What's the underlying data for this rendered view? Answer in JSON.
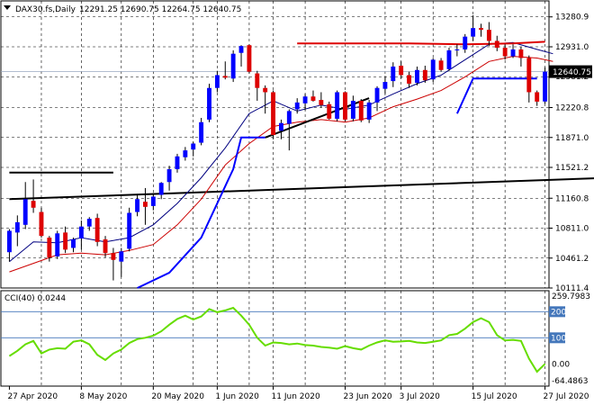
{
  "header": {
    "symbol_label": "DAX30.fs,Daily",
    "ohlc_label": "12291.25 12690.75 12264.75 12640.75"
  },
  "colors": {
    "bull": "#0000ff",
    "bear": "#dd0000",
    "ma_fast": "#000080",
    "ma_slow": "#cc0000",
    "trend": "#000000",
    "cci": "#66dd00",
    "level": "#4477bb",
    "grid": "#000000"
  },
  "chart_data": [
    {
      "type": "candlestick",
      "y_ticks": [
        13280.9,
        12931.0,
        12581.2,
        12220.8,
        11871.0,
        11521.2,
        11160.8,
        10811.0,
        10461.2,
        10111.4
      ],
      "ylim": [
        10111.4,
        13436.0
      ],
      "current_price_label": "12640.75",
      "current_price": 12640.75,
      "x_labels": [
        "27 Apr 2020",
        "8 May 2020",
        "20 May 2020",
        "1 Jun 2020",
        "11 Jun 2020",
        "23 Jun 2020",
        "3 Jul 2020",
        "15 Jul 2020",
        "27 Jul 2020"
      ],
      "x_label_index": [
        0,
        9,
        18,
        26,
        33,
        42,
        49,
        58,
        67
      ],
      "vertical_grid_index": [
        4,
        9,
        14,
        18,
        23,
        26,
        30,
        33,
        37,
        42,
        47,
        49,
        53,
        58,
        62,
        67
      ],
      "candles": [
        [
          10530,
          10800,
          10420,
          10780
        ],
        [
          10760,
          10960,
          10600,
          10880
        ],
        [
          10850,
          11350,
          10800,
          11150
        ],
        [
          11130,
          11380,
          10990,
          11050
        ],
        [
          11000,
          11050,
          10700,
          10720
        ],
        [
          10700,
          10720,
          10420,
          10470
        ],
        [
          10480,
          10780,
          10450,
          10750
        ],
        [
          10760,
          10830,
          10520,
          10560
        ],
        [
          10580,
          10700,
          10530,
          10680
        ],
        [
          10690,
          10900,
          10560,
          10830
        ],
        [
          10830,
          10940,
          10780,
          10920
        ],
        [
          10930,
          10980,
          10600,
          10650
        ],
        [
          10680,
          10720,
          10470,
          10520
        ],
        [
          10520,
          10580,
          10200,
          10440
        ],
        [
          10420,
          10580,
          10240,
          10540
        ],
        [
          10570,
          11050,
          10540,
          10990
        ],
        [
          11000,
          11200,
          10950,
          11150
        ],
        [
          11120,
          11280,
          10850,
          11060
        ],
        [
          11070,
          11220,
          11020,
          11180
        ],
        [
          11200,
          11350,
          11150,
          11340
        ],
        [
          11350,
          11540,
          11250,
          11500
        ],
        [
          11500,
          11680,
          11460,
          11650
        ],
        [
          11640,
          11760,
          11600,
          11720
        ],
        [
          11730,
          11820,
          11650,
          11800
        ],
        [
          11810,
          12100,
          11780,
          12050
        ],
        [
          12080,
          12500,
          12050,
          12450
        ],
        [
          12450,
          12650,
          12400,
          12600
        ],
        [
          12590,
          12760,
          12550,
          12570
        ],
        [
          12560,
          12890,
          12520,
          12850
        ],
        [
          12860,
          12950,
          12700,
          12940
        ],
        [
          12950,
          12960,
          12620,
          12640
        ],
        [
          12620,
          12650,
          12300,
          12450
        ],
        [
          12450,
          12480,
          12150,
          12400
        ],
        [
          12400,
          12420,
          11850,
          11900
        ],
        [
          11950,
          12080,
          11850,
          12040
        ],
        [
          12030,
          12200,
          11720,
          12180
        ],
        [
          12200,
          12330,
          12150,
          12280
        ],
        [
          12270,
          12380,
          12190,
          12350
        ],
        [
          12350,
          12420,
          12290,
          12300
        ],
        [
          12310,
          12400,
          12220,
          12250
        ],
        [
          12260,
          12290,
          12080,
          12090
        ],
        [
          12090,
          12420,
          12060,
          12400
        ],
        [
          12400,
          12410,
          12060,
          12080
        ],
        [
          12090,
          12360,
          12060,
          12300
        ],
        [
          12300,
          12320,
          12050,
          12070
        ],
        [
          12080,
          12310,
          12040,
          12280
        ],
        [
          12280,
          12470,
          12180,
          12450
        ],
        [
          12440,
          12590,
          12380,
          12520
        ],
        [
          12530,
          12750,
          12460,
          12700
        ],
        [
          12710,
          12760,
          12560,
          12600
        ],
        [
          12600,
          12640,
          12450,
          12500
        ],
        [
          12510,
          12700,
          12480,
          12660
        ],
        [
          12660,
          12710,
          12510,
          12540
        ],
        [
          12550,
          12800,
          12520,
          12780
        ],
        [
          12770,
          12800,
          12640,
          12660
        ],
        [
          12670,
          12920,
          12650,
          12890
        ],
        [
          12890,
          12960,
          12820,
          12900
        ],
        [
          12900,
          13080,
          12860,
          13050
        ],
        [
          13050,
          13300,
          13000,
          13150
        ],
        [
          13150,
          13200,
          13050,
          13130
        ],
        [
          13130,
          13220,
          12940,
          13000
        ],
        [
          13000,
          13060,
          12880,
          12920
        ],
        [
          12920,
          12960,
          12780,
          12820
        ],
        [
          12820,
          12960,
          12800,
          12900
        ],
        [
          12900,
          12930,
          12700,
          12800
        ],
        [
          12800,
          12830,
          12280,
          12400
        ],
        [
          12400,
          12420,
          12240,
          12290
        ],
        [
          12291.25,
          12690.75,
          12264.75,
          12640.75
        ]
      ],
      "ma_fast": [
        [
          0,
          10420
        ],
        [
          3,
          10650
        ],
        [
          6,
          10640
        ],
        [
          9,
          10700
        ],
        [
          12,
          10650
        ],
        [
          15,
          10700
        ],
        [
          18,
          10850
        ],
        [
          21,
          11100
        ],
        [
          24,
          11400
        ],
        [
          27,
          11750
        ],
        [
          30,
          12150
        ],
        [
          33,
          12300
        ],
        [
          36,
          12180
        ],
        [
          39,
          12250
        ],
        [
          42,
          12200
        ],
        [
          45,
          12250
        ],
        [
          48,
          12380
        ],
        [
          51,
          12500
        ],
        [
          54,
          12600
        ],
        [
          57,
          12780
        ],
        [
          60,
          12960
        ],
        [
          63,
          12980
        ],
        [
          66,
          12900
        ],
        [
          68,
          12850
        ]
      ],
      "ma_slow": [
        [
          0,
          10300
        ],
        [
          3,
          10400
        ],
        [
          6,
          10500
        ],
        [
          9,
          10520
        ],
        [
          12,
          10500
        ],
        [
          15,
          10550
        ],
        [
          18,
          10620
        ],
        [
          21,
          10850
        ],
        [
          24,
          11150
        ],
        [
          27,
          11550
        ],
        [
          30,
          11800
        ],
        [
          33,
          12000
        ],
        [
          36,
          12050
        ],
        [
          39,
          12080
        ],
        [
          42,
          12050
        ],
        [
          45,
          12100
        ],
        [
          48,
          12230
        ],
        [
          51,
          12320
        ],
        [
          54,
          12420
        ],
        [
          57,
          12580
        ],
        [
          60,
          12760
        ],
        [
          63,
          12820
        ],
        [
          66,
          12800
        ],
        [
          68,
          12760
        ]
      ],
      "channel_upper": [
        [
          36,
          12970
        ],
        [
          42,
          12970
        ],
        [
          50,
          12970
        ],
        [
          57,
          12960
        ],
        [
          63,
          12970
        ],
        [
          67,
          12990
        ]
      ],
      "channel_lower": [
        [
          16,
          10111
        ],
        [
          20,
          10290
        ],
        [
          24,
          10700
        ],
        [
          28,
          11500
        ],
        [
          29,
          11870
        ],
        [
          32,
          11870
        ]
      ],
      "support_line_short": [
        [
          32,
          11870
        ],
        [
          45,
          12330
        ]
      ],
      "channel_lower_recent": [
        [
          56,
          12150
        ],
        [
          58,
          12560
        ],
        [
          66,
          12560
        ]
      ],
      "long_trend": [
        [
          0,
          11150
        ],
        [
          75,
          11400
        ]
      ],
      "resistance_stub": [
        [
          0,
          11460
        ],
        [
          13,
          11460
        ]
      ],
      "cci": {
        "label": "CCI(40) 0.0244",
        "y_ticks": [
          259.7983,
          200,
          100,
          0.0,
          -64.4863
        ],
        "levels": [
          200,
          100
        ],
        "ylim": [
          -64.4863,
          259.7983
        ],
        "values": [
          30,
          50,
          75,
          88,
          40,
          55,
          60,
          58,
          85,
          90,
          75,
          35,
          15,
          40,
          55,
          80,
          95,
          100,
          108,
          125,
          150,
          172,
          185,
          170,
          182,
          210,
          198,
          205,
          215,
          185,
          150,
          100,
          70,
          82,
          80,
          75,
          78,
          72,
          70,
          65,
          62,
          58,
          68,
          60,
          55,
          70,
          82,
          90,
          85,
          86,
          88,
          82,
          80,
          85,
          90,
          110,
          115,
          135,
          160,
          175,
          160,
          110,
          90,
          92,
          88,
          20,
          -30,
          0.0244
        ]
      }
    }
  ]
}
